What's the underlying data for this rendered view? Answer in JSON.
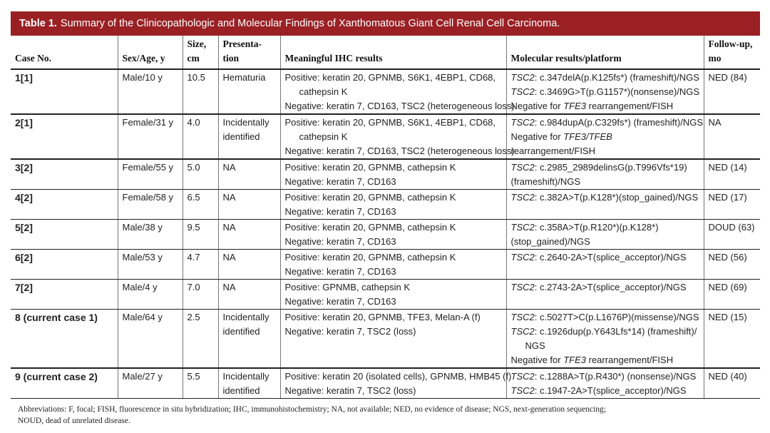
{
  "title": {
    "label": "Table 1.",
    "text": "Summary of the Clinicopathologic and Molecular Findings of Xanthomatous Giant Cell Renal Cell Carcinoma."
  },
  "headers": {
    "case": "Case No.",
    "sex_age": "Sex/Age, y",
    "size_1": "Size,",
    "size_2": "cm",
    "pres_1": "Presenta-",
    "pres_2": "tion",
    "ihc": "Meaningful IHC results",
    "mol": "Molecular results/platform",
    "fu_1": "Follow-up,",
    "fu_2": "mo"
  },
  "rows": [
    {
      "case": "1[1]",
      "sex_age": "Male/10 y",
      "size": "10.5",
      "presentation": [
        "Hematuria"
      ],
      "ihc": [
        "Positive: keratin 20, GPNMB, S6K1, 4EBP1, CD68,",
        "cathepsin K",
        "Negative: keratin 7, CD163, TSC2 (heterogeneous loss)"
      ],
      "mol": [
        {
          "gene": "TSC2",
          "text": ": c.347delA(p.K125fs*) (frameshift)/NGS"
        },
        {
          "gene": "TSC2",
          "text": ": c.3469G>T(p.G1157*)(nonsense)/NGS"
        },
        {
          "pre": "Negative for ",
          "gene": "TFE3",
          "text": " rearrangement/FISH"
        }
      ],
      "followup": "NED (84)"
    },
    {
      "case": "2[1]",
      "sex_age": "Female/31 y",
      "size": "4.0",
      "presentation": [
        "Incidentally",
        "identified"
      ],
      "ihc": [
        "Positive: keratin 20, GPNMB, S6K1, 4EBP1, CD68,",
        "cathepsin K",
        "Negative: keratin 7, CD163, TSC2 (heterogeneous loss)"
      ],
      "mol": [
        {
          "gene": "TSC2",
          "text": ": c.984dupA(p.C329fs*) (frameshift)/NGS"
        },
        {
          "pre": "Negative for ",
          "gene": "TFE3/TFEB",
          "text": ""
        },
        {
          "text": "rearrangement/FISH"
        }
      ],
      "followup": "NA"
    },
    {
      "case": "3[2]",
      "sex_age": "Female/55 y",
      "size": "5.0",
      "presentation": [
        "NA"
      ],
      "ihc": [
        "Positive: keratin 20, GPNMB, cathepsin K",
        "Negative: keratin 7, CD163"
      ],
      "mol": [
        {
          "gene": "TSC2",
          "text": ": c.2985_2989delinsG(p.T996Vfs*19)"
        },
        {
          "text": "(frameshift)/NGS"
        }
      ],
      "followup": "NED (14)"
    },
    {
      "case": "4[2]",
      "sex_age": "Female/58 y",
      "size": "6.5",
      "presentation": [
        "NA"
      ],
      "ihc": [
        "Positive: keratin 20, GPNMB, cathepsin K",
        "Negative: keratin 7, CD163"
      ],
      "mol": [
        {
          "gene": "TSC2",
          "text": ": c.382A>T(p.K128*)(stop_gained)/NGS"
        }
      ],
      "followup": "NED (17)"
    },
    {
      "case": "5[2]",
      "sex_age": "Male/38 y",
      "size": "9.5",
      "presentation": [
        "NA"
      ],
      "ihc": [
        "Positive: keratin 20, GPNMB, cathepsin K",
        "Negative: keratin 7, CD163"
      ],
      "mol": [
        {
          "gene": "TSC2",
          "text": ": c.358A>T(p.R120*)(p.K128*)"
        },
        {
          "text": "(stop_gained)/NGS"
        }
      ],
      "followup": "DOUD (63)"
    },
    {
      "case": "6[2]",
      "sex_age": "Male/53 y",
      "size": "4.7",
      "presentation": [
        "NA"
      ],
      "ihc": [
        "Positive: keratin 20, GPNMB, cathepsin K",
        "Negative: keratin 7, CD163"
      ],
      "mol": [
        {
          "gene": "TSC2",
          "text": ": c.2640-2A>T(splice_acceptor)/NGS"
        }
      ],
      "followup": "NED (56)"
    },
    {
      "case": "7[2]",
      "sex_age": "Male/4 y",
      "size": "7.0",
      "presentation": [
        "NA"
      ],
      "ihc": [
        "Positive: GPNMB, cathepsin K",
        "Negative: keratin 7, CD163"
      ],
      "mol": [
        {
          "gene": "TSC2",
          "text": ": c.2743-2A>T(splice_acceptor)/NGS"
        }
      ],
      "followup": "NED (69)"
    },
    {
      "case": "8 (current case 1)",
      "sex_age": "Male/64 y",
      "size": "2.5",
      "presentation": [
        "Incidentally",
        "identified"
      ],
      "ihc": [
        "Positive: keratin 20, GPNMB, TFE3, Melan-A (f)",
        "Negative: keratin 7, TSC2 (loss)"
      ],
      "mol": [
        {
          "gene": "TSC2",
          "text": ": c.5027T>C(p.L1676P)(missense)/NGS"
        },
        {
          "gene": "TSC2",
          "text": ": c.1926dup(p.Y643Lfs*14) (frameshift)/"
        },
        {
          "text": "NGS",
          "indent": true
        },
        {
          "pre": "Negative for ",
          "gene": "TFE3",
          "text": " rearrangement/FISH"
        }
      ],
      "followup": "NED (15)"
    },
    {
      "case": "9 (current case 2)",
      "sex_age": "Male/27 y",
      "size": "5.5",
      "presentation": [
        "Incidentally",
        "identified"
      ],
      "ihc": [
        "Positive: keratin 20 (isolated cells), GPNMB, HMB45 (f)",
        "Negative: keratin 7, TSC2 (loss)"
      ],
      "mol": [
        {
          "gene": "TSC2",
          "text": ": c.1288A>T(p.R430*) (nonsense)/NGS"
        },
        {
          "gene": "TSC2",
          "text": ": c.1947-2A>T(splice_acceptor)/NGS"
        }
      ],
      "followup": "NED (40)"
    }
  ],
  "footnote": {
    "line1": "Abbreviations: F, focal; FISH, fluorescence in situ hybridization; IHC, immunohistochemistry; NA, not available; NED, no evidence of disease; NGS, next-generation sequencing;",
    "line2": "NOUD, dead of unrelated disease."
  },
  "colors": {
    "title_bar": "#9a2024"
  }
}
